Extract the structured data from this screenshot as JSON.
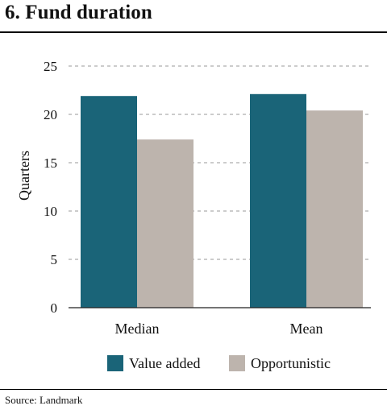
{
  "title": "6. Fund duration",
  "source": "Source: Landmark",
  "chart_data": {
    "type": "bar",
    "categories": [
      "Median",
      "Mean"
    ],
    "series": [
      {
        "name": "Value added",
        "values": [
          21.9,
          22.1
        ],
        "color": "#1a6478"
      },
      {
        "name": "Opportunistic",
        "values": [
          17.4,
          20.4
        ],
        "color": "#bdb4ad"
      }
    ],
    "xlabel": "",
    "ylabel": "Quarters",
    "ylim": [
      0,
      25
    ],
    "yticks": [
      0,
      5,
      10,
      15,
      20,
      25
    ],
    "grid": true,
    "legend": "bottom"
  }
}
